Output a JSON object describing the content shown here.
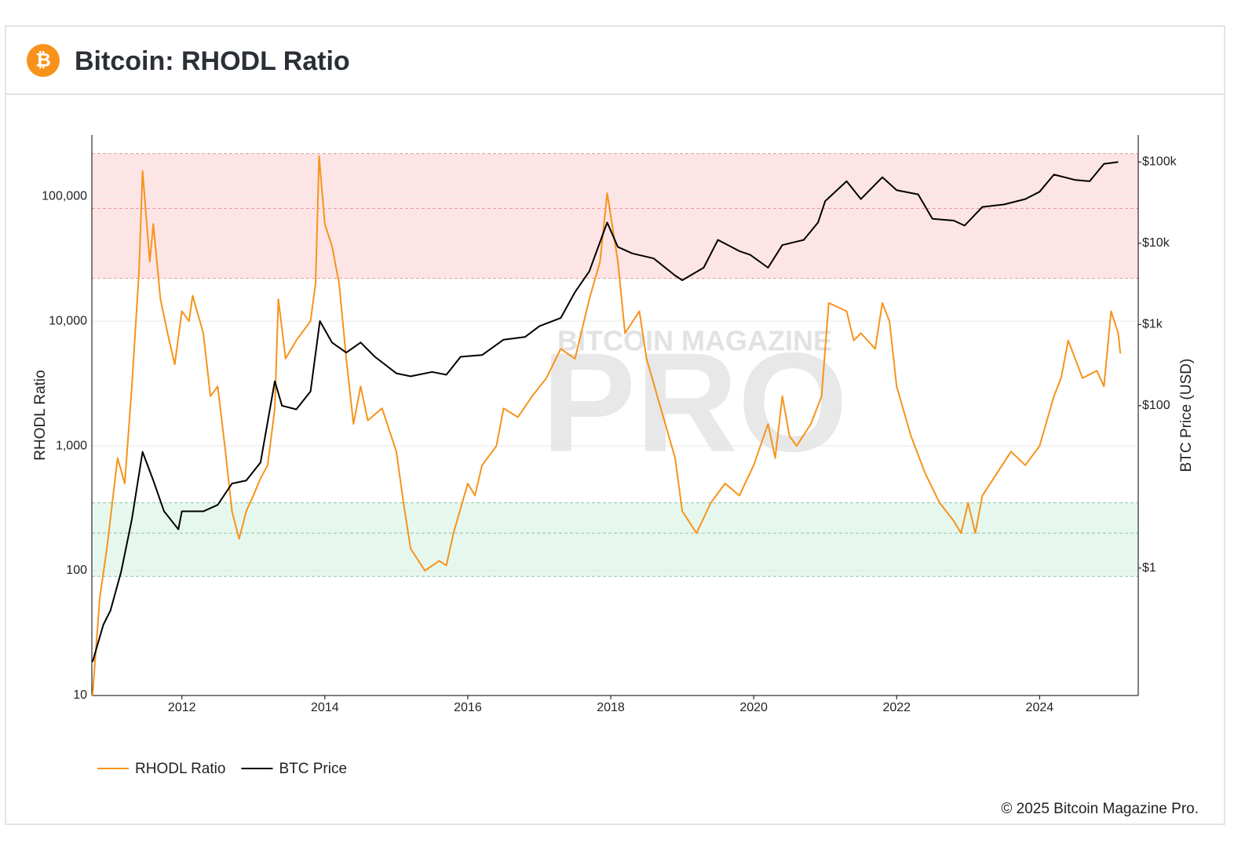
{
  "header": {
    "logo": "₿",
    "title": "Bitcoin: RHODL Ratio"
  },
  "footer": "© 2025 Bitcoin Magazine Pro.",
  "chart_data": {
    "type": "line",
    "watermark": {
      "top": "BITCOIN MAGAZINE",
      "main": "PRO"
    },
    "y_label": "RHODL Ratio",
    "y2_label": "BTC Price (USD)",
    "xlim": [
      2010.74,
      2025.38
    ],
    "xticks": [
      2012,
      2014,
      2016,
      2018,
      2020,
      2022,
      2024
    ],
    "ylog": true,
    "ylim": [
      10,
      310000
    ],
    "yticks": [
      10,
      100,
      {
        "value": 1000,
        "label": "1,000"
      },
      {
        "value": 10000,
        "label": "10,000"
      },
      {
        "value": 100000,
        "label": "100,000"
      }
    ],
    "y2log": true,
    "y2lim": [
      0.027,
      215000
    ],
    "y2ticks": [
      {
        "value": 1,
        "label": "$1"
      },
      {
        "value": 100,
        "label": "$100"
      },
      {
        "value": 1000,
        "label": "$1k"
      },
      {
        "value": 10000,
        "label": "$10k"
      },
      {
        "value": 100000,
        "label": "$100k"
      }
    ],
    "grid": true,
    "legend": "bottom-left",
    "zones": [
      {
        "range": [
          22000,
          220000
        ],
        "mid": 80000,
        "color": "#fde5e5",
        "line_color": "#e39a9a"
      },
      {
        "range": [
          90,
          350
        ],
        "mid": 200,
        "color": "#e6f7ee",
        "line_color": "#8cc5a0"
      }
    ],
    "series": [
      {
        "name": "RHODL Ratio",
        "color": "#f7931a",
        "x": [
          2010.75,
          2010.85,
          2010.95,
          2011.1,
          2011.2,
          2011.3,
          2011.4,
          2011.45,
          2011.55,
          2011.6,
          2011.7,
          2011.8,
          2011.9,
          2012.0,
          2012.1,
          2012.15,
          2012.3,
          2012.4,
          2012.5,
          2012.6,
          2012.7,
          2012.8,
          2012.9,
          2013.0,
          2013.1,
          2013.2,
          2013.3,
          2013.35,
          2013.45,
          2013.6,
          2013.8,
          2013.87,
          2013.92,
          2014.0,
          2014.1,
          2014.2,
          2014.3,
          2014.4,
          2014.5,
          2014.6,
          2014.8,
          2015.0,
          2015.1,
          2015.2,
          2015.4,
          2015.6,
          2015.7,
          2015.8,
          2016.0,
          2016.1,
          2016.2,
          2016.4,
          2016.5,
          2016.7,
          2016.9,
          2017.1,
          2017.3,
          2017.5,
          2017.7,
          2017.85,
          2017.95,
          2018.1,
          2018.2,
          2018.4,
          2018.5,
          2018.7,
          2018.9,
          2019.0,
          2019.2,
          2019.4,
          2019.6,
          2019.8,
          2020.0,
          2020.2,
          2020.3,
          2020.4,
          2020.5,
          2020.6,
          2020.8,
          2020.95,
          2021.0,
          2021.05,
          2021.3,
          2021.4,
          2021.5,
          2021.7,
          2021.8,
          2021.9,
          2022.0,
          2022.2,
          2022.4,
          2022.6,
          2022.8,
          2022.9,
          2023.0,
          2023.1,
          2023.2,
          2023.4,
          2023.6,
          2023.8,
          2024.0,
          2024.2,
          2024.3,
          2024.4,
          2024.6,
          2024.8,
          2024.9,
          2025.0,
          2025.1,
          2025.13
        ],
        "values": [
          10,
          60,
          150,
          800,
          500,
          3000,
          25000,
          160000,
          30000,
          60000,
          15000,
          8000,
          4500,
          12000,
          10000,
          16000,
          8000,
          2500,
          3000,
          1000,
          300,
          180,
          300,
          400,
          550,
          700,
          2000,
          15000,
          5000,
          7000,
          10000,
          20000,
          210000,
          60000,
          40000,
          20000,
          5000,
          1500,
          3000,
          1600,
          2000,
          900,
          350,
          150,
          100,
          120,
          110,
          200,
          500,
          400,
          700,
          1000,
          2000,
          1700,
          2500,
          3500,
          6000,
          5000,
          15000,
          30000,
          106000,
          30000,
          8000,
          12000,
          5000,
          2000,
          800,
          300,
          200,
          350,
          500,
          400,
          700,
          1500,
          800,
          2500,
          1200,
          1000,
          1500,
          2500,
          6000,
          14000,
          12000,
          7000,
          8000,
          6000,
          14000,
          10000,
          3000,
          1200,
          600,
          350,
          250,
          200,
          350,
          200,
          400,
          600,
          900,
          700,
          1000,
          2500,
          3500,
          7000,
          3500,
          4000,
          3000,
          12000,
          8000,
          5500
        ]
      },
      {
        "name": "BTC Price",
        "color": "#000000",
        "axis": "y2",
        "x": [
          2010.75,
          2010.9,
          2011.0,
          2011.15,
          2011.3,
          2011.45,
          2011.6,
          2011.75,
          2011.95,
          2012.0,
          2012.3,
          2012.5,
          2012.7,
          2012.9,
          2013.1,
          2013.3,
          2013.4,
          2013.6,
          2013.8,
          2013.93,
          2014.1,
          2014.3,
          2014.5,
          2014.7,
          2015.0,
          2015.2,
          2015.5,
          2015.7,
          2015.9,
          2016.2,
          2016.5,
          2016.8,
          2017.0,
          2017.3,
          2017.5,
          2017.7,
          2017.95,
          2018.1,
          2018.3,
          2018.6,
          2018.9,
          2019.0,
          2019.3,
          2019.5,
          2019.8,
          2019.95,
          2020.2,
          2020.4,
          2020.7,
          2020.9,
          2021.0,
          2021.3,
          2021.5,
          2021.8,
          2022.0,
          2022.3,
          2022.5,
          2022.8,
          2022.95,
          2023.2,
          2023.5,
          2023.8,
          2024.0,
          2024.2,
          2024.5,
          2024.7,
          2024.9,
          2025.1
        ],
        "values": [
          0.07,
          0.2,
          0.3,
          0.9,
          4,
          27,
          12,
          5,
          3,
          5,
          5,
          6,
          11,
          12,
          20,
          200,
          100,
          90,
          150,
          1100,
          600,
          450,
          600,
          400,
          250,
          230,
          260,
          240,
          400,
          420,
          650,
          700,
          950,
          1200,
          2500,
          4500,
          18000,
          9000,
          7500,
          6500,
          4000,
          3500,
          5000,
          11000,
          8000,
          7200,
          5000,
          9500,
          11000,
          18000,
          33000,
          58000,
          35000,
          65000,
          45000,
          40000,
          20000,
          19000,
          16500,
          28000,
          30000,
          35000,
          43000,
          70000,
          60000,
          58000,
          95000,
          100000
        ]
      }
    ]
  }
}
